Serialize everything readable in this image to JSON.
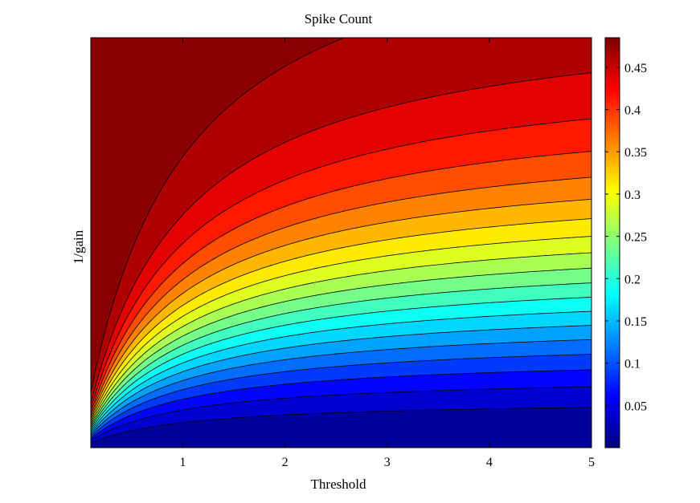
{
  "chart_data": {
    "type": "contour",
    "title": "Spike Count",
    "xlabel": "Threshold",
    "ylabel": "1/gain",
    "x_ticks": [
      "1",
      "2",
      "3",
      "4",
      "5"
    ],
    "x_tick_values": [
      1,
      2,
      3,
      4,
      5
    ],
    "xlim": [
      0.1,
      5
    ],
    "y_ticks": [],
    "ylim": [
      0,
      1
    ],
    "colorbar": {
      "colormap": "jet",
      "range": [
        0,
        0.485
      ],
      "tick_values": [
        0.05,
        0.1,
        0.15,
        0.2,
        0.25,
        0.3,
        0.35,
        0.4,
        0.45
      ],
      "tick_labels": [
        "0.05",
        "0.1",
        "0.15",
        "0.2",
        "0.25",
        "0.3",
        "0.35",
        "0.4",
        "0.45"
      ]
    },
    "contour_levels": [
      0.025,
      0.05,
      0.075,
      0.1,
      0.125,
      0.15,
      0.175,
      0.2,
      0.225,
      0.25,
      0.275,
      0.3,
      0.325,
      0.35,
      0.375,
      0.4,
      0.425,
      0.45,
      0.475
    ],
    "grid": false
  }
}
